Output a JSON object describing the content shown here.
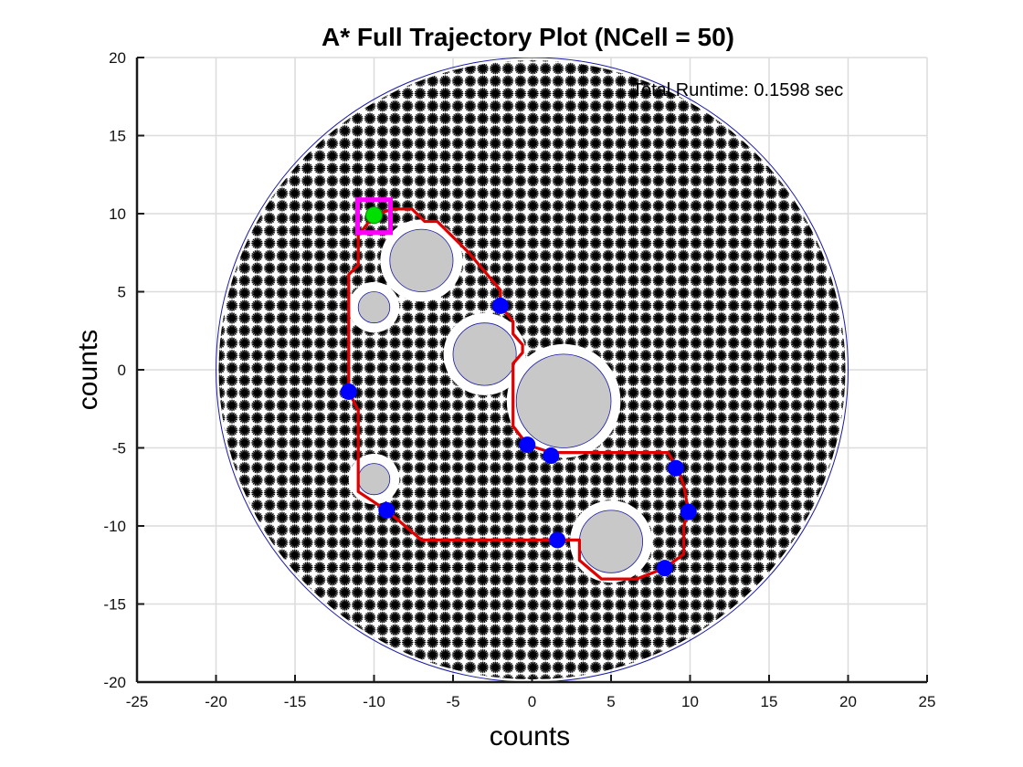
{
  "chart_data": {
    "type": "scatter",
    "title": "A* Full Trajectory Plot (NCell = 50)",
    "xlabel": "counts",
    "ylabel": "counts",
    "xlim": [
      -25,
      25
    ],
    "ylim": [
      -20,
      20
    ],
    "xticks": [
      -25,
      -20,
      -15,
      -10,
      -5,
      0,
      5,
      10,
      15,
      20,
      25
    ],
    "yticks": [
      -20,
      -15,
      -10,
      -5,
      0,
      5,
      10,
      15,
      20
    ],
    "grid": true,
    "annotation": "Total Runtime: 0.1598 sec",
    "colors": {
      "path": "#e00000",
      "waypoint": "#0000ff",
      "start": "#00e000",
      "goal_box": "#ff00ff",
      "obstacle_fill": "#c8c8c8",
      "cell_marker": "#000000",
      "boundary": "#1a1aa8"
    },
    "boundary_circle": {
      "center": [
        0,
        0
      ],
      "radius": 20
    },
    "cell_grid_spacing": 0.8,
    "obstacles": [
      {
        "center": [
          -7,
          7
        ],
        "radius": 2
      },
      {
        "center": [
          -10,
          4
        ],
        "radius": 1
      },
      {
        "center": [
          -3,
          1
        ],
        "radius": 2
      },
      {
        "center": [
          2,
          -2
        ],
        "radius": 3
      },
      {
        "center": [
          -10,
          -7
        ],
        "radius": 1
      },
      {
        "center": [
          5,
          -11
        ],
        "radius": 2
      }
    ],
    "goal": {
      "x": -10,
      "y": 9.9,
      "label": "goal"
    },
    "start": {
      "x": -10,
      "y": 9.9
    },
    "waypoints": [
      {
        "x": -2,
        "y": 4.1
      },
      {
        "x": -11.6,
        "y": -1.4
      },
      {
        "x": -0.3,
        "y": -4.8
      },
      {
        "x": 1.2,
        "y": -5.5
      },
      {
        "x": 9.1,
        "y": -6.3
      },
      {
        "x": -9.2,
        "y": -9
      },
      {
        "x": 9.9,
        "y": -9.1
      },
      {
        "x": 1.6,
        "y": -10.9
      },
      {
        "x": 8.4,
        "y": -12.7
      }
    ],
    "path": [
      [
        -10,
        9.9
      ],
      [
        -8.8,
        10.3
      ],
      [
        -7.6,
        10.3
      ],
      [
        -6.8,
        9.5
      ],
      [
        -6,
        9.5
      ],
      [
        -4,
        7.5
      ],
      [
        -2,
        5.1
      ],
      [
        -2,
        4.1
      ],
      [
        -1.2,
        3.1
      ],
      [
        -1.2,
        2.3
      ],
      [
        -0.6,
        1.6
      ],
      [
        -0.6,
        1.1
      ],
      [
        -1.2,
        0.4
      ],
      [
        -1.2,
        -3.6
      ],
      [
        -0.3,
        -4.8
      ],
      [
        1.2,
        -5.3
      ],
      [
        8.6,
        -5.3
      ],
      [
        9.2,
        -6.3
      ],
      [
        9.6,
        -7.4
      ],
      [
        9.9,
        -9.1
      ],
      [
        9.6,
        -10
      ],
      [
        9.6,
        -11.8
      ],
      [
        8.4,
        -12.7
      ],
      [
        6.6,
        -13.4
      ],
      [
        4.4,
        -13.4
      ],
      [
        3,
        -12.2
      ],
      [
        3,
        -10.9
      ],
      [
        1.6,
        -10.9
      ],
      [
        -7,
        -10.9
      ],
      [
        -9.2,
        -9
      ],
      [
        -11,
        -7.8
      ],
      [
        -11,
        -2.6
      ],
      [
        -11.6,
        -1.4
      ],
      [
        -11.6,
        6.1
      ],
      [
        -11,
        6.7
      ],
      [
        -11,
        8.6
      ],
      [
        -10,
        9.9
      ]
    ]
  }
}
